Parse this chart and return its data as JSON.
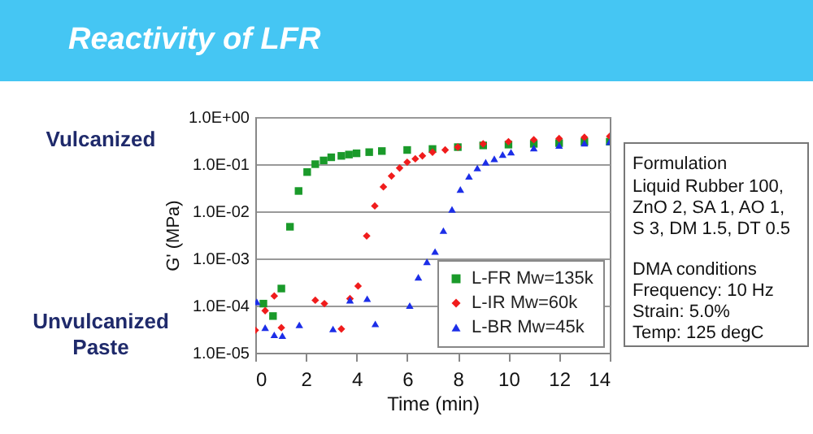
{
  "chart_data": {
    "type": "scatter",
    "title": "Reactivity of LFR",
    "xlabel": "Time (min)",
    "ylabel": "G' (MPa)",
    "xlim": [
      0,
      14
    ],
    "xticks": [
      0,
      2,
      4,
      6,
      8,
      10,
      12,
      14
    ],
    "ylim": [
      1e-05,
      1
    ],
    "log": "y",
    "yticks": [
      {
        "value": 1e-05,
        "label": "1.0E-05"
      },
      {
        "value": 0.0001,
        "label": "1.0E-04"
      },
      {
        "value": 0.001,
        "label": "1.0E-03"
      },
      {
        "value": 0.01,
        "label": "1.0E-02"
      },
      {
        "value": 0.1,
        "label": "1.0E-01"
      },
      {
        "value": 1,
        "label": "1.0E+00"
      }
    ],
    "grid": "y",
    "legend": "bottom right",
    "annotations": [
      "Vulcanized",
      "Unvulcanized Paste",
      "Formulation",
      "Liquid Rubber 100,",
      "ZnO 2, SA 1, AO 1,",
      "S 3, DM 1.5, DT 0.5",
      "DMA conditions",
      "Frequency: 10 Hz",
      "Strain: 5.0%",
      "Temp: 125 degC"
    ],
    "series": [
      {
        "name": "L-FR Mw=135k",
        "color": "#1a9a2a",
        "marker": "square",
        "x": [
          0.32,
          0.7,
          1.03,
          1.37,
          1.71,
          2.05,
          2.37,
          2.7,
          3.0,
          3.4,
          3.7,
          4.0,
          4.5,
          5.0,
          6,
          7,
          8,
          9,
          10,
          11,
          12,
          13,
          14
        ],
        "values": [
          0.00011,
          6e-05,
          0.00023,
          0.0047,
          0.027,
          0.068,
          0.1,
          0.12,
          0.14,
          0.15,
          0.16,
          0.17,
          0.18,
          0.19,
          0.2,
          0.21,
          0.23,
          0.25,
          0.26,
          0.27,
          0.28,
          0.3,
          0.3
        ]
      },
      {
        "name": "L-IR Mw=60k",
        "color": "#f01c1c",
        "marker": "diamond",
        "x": [
          0.0,
          0.39,
          0.75,
          1.03,
          2.37,
          2.73,
          3.4,
          3.74,
          4.06,
          4.4,
          4.72,
          5.06,
          5.38,
          5.7,
          6.0,
          6.32,
          6.6,
          7,
          7.5,
          8,
          9,
          10,
          11,
          12,
          13,
          14
        ],
        "values": [
          3e-05,
          7.8e-05,
          0.00016,
          3.4e-05,
          0.00013,
          0.00011,
          3.2e-05,
          0.00014,
          0.00026,
          0.003,
          0.013,
          0.033,
          0.056,
          0.083,
          0.11,
          0.13,
          0.15,
          0.18,
          0.2,
          0.23,
          0.27,
          0.3,
          0.33,
          0.35,
          0.37,
          0.39
        ]
      },
      {
        "name": "L-BR Mw=45k",
        "color": "#1c2ee8",
        "marker": "triangle",
        "x": [
          0.06,
          0.39,
          0.75,
          1.07,
          1.74,
          3.07,
          3.74,
          4.42,
          4.74,
          6.1,
          6.44,
          6.78,
          7.1,
          7.43,
          7.77,
          8.1,
          8.44,
          8.77,
          9.1,
          9.44,
          9.77,
          10.1,
          11,
          12,
          13,
          14
        ],
        "values": [
          0.00012,
          3.4e-05,
          2.4e-05,
          2.3e-05,
          3.9e-05,
          3.2e-05,
          0.00013,
          0.00014,
          4.1e-05,
          0.0001,
          0.0004,
          0.00085,
          0.0014,
          0.0039,
          0.011,
          0.029,
          0.055,
          0.083,
          0.11,
          0.13,
          0.16,
          0.18,
          0.22,
          0.25,
          0.28,
          0.3
        ]
      }
    ]
  }
}
